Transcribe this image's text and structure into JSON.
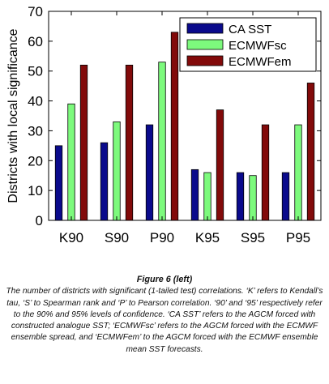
{
  "chart_data": {
    "type": "bar",
    "categories": [
      "K90",
      "S90",
      "P90",
      "K95",
      "S95",
      "P95"
    ],
    "series": [
      {
        "name": "CA SST",
        "values": [
          25,
          26,
          32,
          17,
          16,
          16
        ],
        "color": "#0a0a8c"
      },
      {
        "name": "ECMWFsc",
        "values": [
          39,
          33,
          53,
          16,
          15,
          32
        ],
        "color": "#7dfa7d"
      },
      {
        "name": "ECMWFem",
        "values": [
          52,
          52,
          63,
          37,
          32,
          46
        ],
        "color": "#820a0a"
      }
    ],
    "ylabel": "Districts with local significance",
    "xlabel": "",
    "ylim": [
      0,
      70
    ],
    "yticks": [
      0,
      10,
      20,
      30,
      40,
      50,
      60,
      70
    ],
    "grid": false,
    "legend_position": "top-right"
  },
  "caption": {
    "title": "Figure 6 (left)",
    "text": "The number of districts with significant (1-tailed test) correlations. ‘K’ refers to Kendall’s tau, ‘S’ to Spearman rank and ‘P’ to Pearson correlation. ‘90’ and ‘95’ respectively refer to the 90% and 95% levels of confidence. ‘CA SST’ refers to the AGCM forced with constructed analogue SST; ‘ECMWFsc’ refers to the AGCM forced with the ECMWF ensemble spread, and ‘ECMWFem’ to the AGCM forced with the ECMWF ensemble mean SST forecasts."
  }
}
